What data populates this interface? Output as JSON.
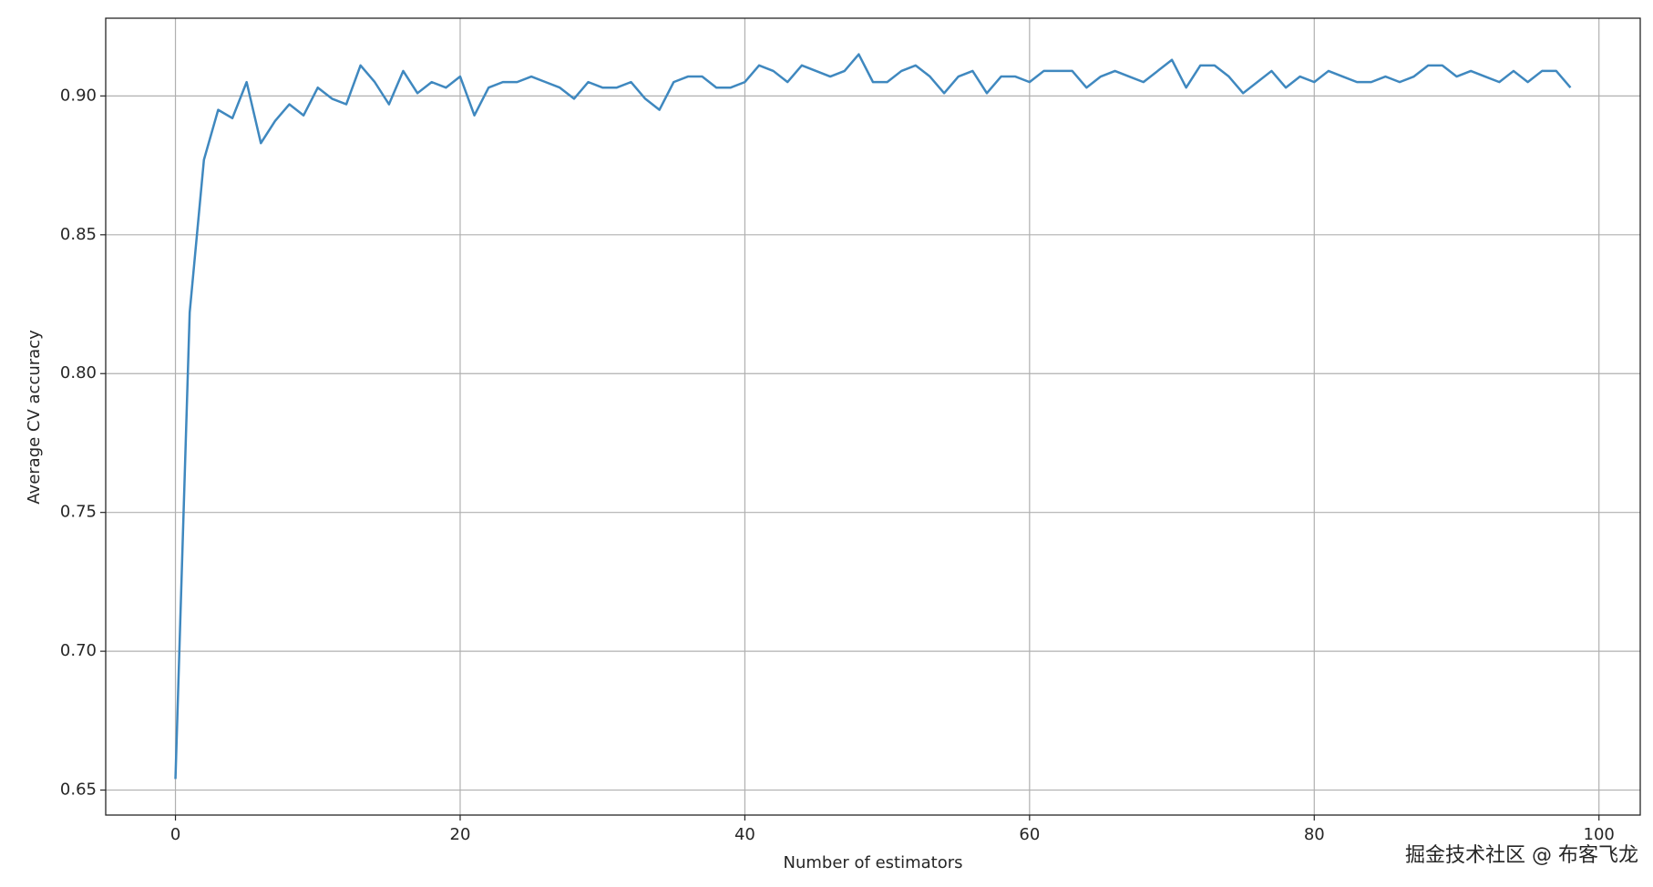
{
  "chart_data": {
    "type": "line",
    "x_label": "Number of estimators",
    "y_label": "Average CV accuracy",
    "x": [
      0,
      1,
      2,
      3,
      4,
      5,
      6,
      7,
      8,
      9,
      10,
      11,
      12,
      13,
      14,
      15,
      16,
      17,
      18,
      19,
      20,
      21,
      22,
      23,
      24,
      25,
      26,
      27,
      28,
      29,
      30,
      31,
      32,
      33,
      34,
      35,
      36,
      37,
      38,
      39,
      40,
      41,
      42,
      43,
      44,
      45,
      46,
      47,
      48,
      49,
      50,
      51,
      52,
      53,
      54,
      55,
      56,
      57,
      58,
      59,
      60,
      61,
      62,
      63,
      64,
      65,
      66,
      67,
      68,
      69,
      70,
      71,
      72,
      73,
      74,
      75,
      76,
      77,
      78,
      79,
      80,
      81,
      82,
      83,
      84,
      85,
      86,
      87,
      88,
      89,
      90,
      91,
      92,
      93,
      94,
      95,
      96,
      97,
      98
    ],
    "series": [
      {
        "color": "#3f88bf",
        "values": [
          0.654,
          0.822,
          0.877,
          0.895,
          0.892,
          0.905,
          0.883,
          0.891,
          0.897,
          0.893,
          0.903,
          0.899,
          0.897,
          0.911,
          0.905,
          0.897,
          0.909,
          0.901,
          0.905,
          0.903,
          0.907,
          0.893,
          0.903,
          0.905,
          0.905,
          0.907,
          0.905,
          0.903,
          0.899,
          0.905,
          0.903,
          0.903,
          0.905,
          0.899,
          0.895,
          0.905,
          0.907,
          0.907,
          0.903,
          0.903,
          0.905,
          0.911,
          0.909,
          0.905,
          0.911,
          0.909,
          0.907,
          0.909,
          0.915,
          0.905,
          0.905,
          0.909,
          0.911,
          0.907,
          0.901,
          0.907,
          0.909,
          0.901,
          0.907,
          0.907,
          0.905,
          0.909,
          0.909,
          0.909,
          0.903,
          0.907,
          0.909,
          0.907,
          0.905,
          0.909,
          0.913,
          0.903,
          0.911,
          0.911,
          0.907,
          0.901,
          0.905,
          0.909,
          0.903,
          0.907,
          0.905,
          0.909,
          0.907,
          0.905,
          0.905,
          0.907,
          0.905,
          0.907,
          0.911,
          0.911,
          0.907,
          0.909,
          0.907,
          0.905,
          0.909,
          0.905,
          0.909,
          0.909,
          0.903
        ]
      }
    ],
    "xlim": [
      -4.9,
      102.9
    ],
    "ylim": [
      0.641,
      0.928
    ],
    "xticks": [
      0,
      20,
      40,
      60,
      80,
      100
    ],
    "yticks": [
      0.65,
      {
        "value": 0.7,
        "label": "0.70"
      },
      0.75,
      {
        "value": 0.8,
        "label": "0.80"
      },
      0.85,
      {
        "value": 0.9,
        "label": "0.90"
      }
    ],
    "grid": true,
    "watermark": "掘金技术社区 @ 布客飞龙"
  }
}
